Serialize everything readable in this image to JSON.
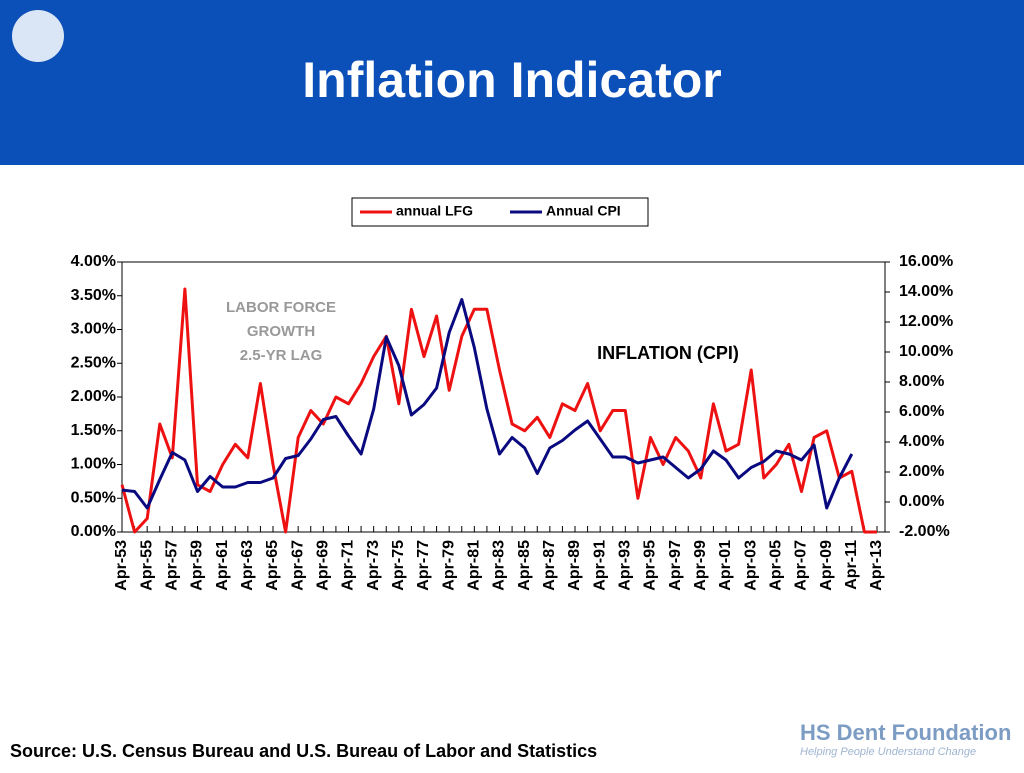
{
  "header": {
    "title": "Inflation Indicator"
  },
  "chart_data": {
    "type": "line",
    "annotations": [
      "LABOR FORCE",
      "GROWTH",
      "2.5-YR LAG",
      "INFLATION (CPI)"
    ],
    "categories": [
      "Apr-53",
      null,
      "Apr-55",
      null,
      "Apr-57",
      null,
      "Apr-59",
      null,
      "Apr-61",
      null,
      "Apr-63",
      null,
      "Apr-65",
      null,
      "Apr-67",
      null,
      "Apr-69",
      null,
      "Apr-71",
      null,
      "Apr-73",
      null,
      "Apr-75",
      null,
      "Apr-77",
      null,
      "Apr-79",
      null,
      "Apr-81",
      null,
      "Apr-83",
      null,
      "Apr-85",
      null,
      "Apr-87",
      null,
      "Apr-89",
      null,
      "Apr-91",
      null,
      "Apr-93",
      null,
      "Apr-95",
      null,
      "Apr-97",
      null,
      "Apr-99",
      null,
      "Apr-01",
      null,
      "Apr-03",
      null,
      "Apr-05",
      null,
      "Apr-07",
      null,
      "Apr-09",
      null,
      "Apr-11",
      null,
      "Apr-13"
    ],
    "series": [
      {
        "name": "annual LFG",
        "color": "#ee1111",
        "axis": "y",
        "values": [
          0.7,
          0.0,
          0.2,
          1.6,
          1.1,
          3.6,
          0.7,
          0.6,
          1.0,
          1.3,
          1.1,
          2.2,
          1.0,
          0.0,
          1.4,
          1.8,
          1.6,
          2.0,
          1.9,
          2.2,
          2.6,
          2.9,
          1.9,
          3.3,
          2.6,
          3.2,
          2.1,
          2.9,
          3.3,
          3.3,
          2.4,
          1.6,
          1.5,
          1.7,
          1.4,
          1.9,
          1.8,
          2.2,
          1.5,
          1.8,
          1.8,
          0.5,
          1.4,
          1.0,
          1.4,
          1.2,
          0.8,
          1.9,
          1.2,
          1.3,
          2.4,
          0.8,
          1.0,
          1.3,
          0.6,
          1.4,
          1.5,
          0.8,
          0.9,
          0.0,
          0.0
        ]
      },
      {
        "name": "Annual CPI",
        "color": "#0a0a80",
        "axis": "y2",
        "values": [
          0.8,
          0.7,
          -0.4,
          1.5,
          3.3,
          2.8,
          0.7,
          1.7,
          1.0,
          1.0,
          1.3,
          1.3,
          1.6,
          2.9,
          3.1,
          4.2,
          5.5,
          5.7,
          4.4,
          3.2,
          6.2,
          11.0,
          9.1,
          5.8,
          6.5,
          7.6,
          11.3,
          13.5,
          10.3,
          6.2,
          3.2,
          4.3,
          3.6,
          1.9,
          3.6,
          4.1,
          4.8,
          5.4,
          4.2,
          3.0,
          3.0,
          2.6,
          2.8,
          3.0,
          2.3,
          1.6,
          2.2,
          3.4,
          2.8,
          1.6,
          2.3,
          2.7,
          3.4,
          3.2,
          2.8,
          3.8,
          -0.4,
          1.6,
          3.2,
          null,
          null
        ]
      }
    ],
    "ylim": [
      0,
      4
    ],
    "yticks": [
      {
        "value": 0,
        "label": "0.00%"
      },
      {
        "value": 0.5,
        "label": "0.50%"
      },
      {
        "value": 1,
        "label": "1.00%"
      },
      {
        "value": 1.5,
        "label": "1.50%"
      },
      {
        "value": 2,
        "label": "2.00%"
      },
      {
        "value": 2.5,
        "label": "2.50%"
      },
      {
        "value": 3,
        "label": "3.00%"
      },
      {
        "value": 3.5,
        "label": "3.50%"
      },
      {
        "value": 4,
        "label": "4.00%"
      }
    ],
    "y2lim": [
      -2,
      16
    ],
    "y2ticks": [
      {
        "value": -2,
        "label": "-2.00%"
      },
      {
        "value": 0,
        "label": "0.00%"
      },
      {
        "value": 2,
        "label": "2.00%"
      },
      {
        "value": 4,
        "label": "4.00%"
      },
      {
        "value": 6,
        "label": "6.00%"
      },
      {
        "value": 8,
        "label": "8.00%"
      },
      {
        "value": 10,
        "label": "10.00%"
      },
      {
        "value": 12,
        "label": "12.00%"
      },
      {
        "value": 14,
        "label": "14.00%"
      },
      {
        "value": 16,
        "label": "16.00%"
      }
    ],
    "legend": "top"
  },
  "footer": {
    "source": "Source: U.S. Census Bureau and U.S. Bureau of Labor and Statistics",
    "brand": "HS Dent Foundation",
    "tagline": "Helping People Understand Change"
  }
}
